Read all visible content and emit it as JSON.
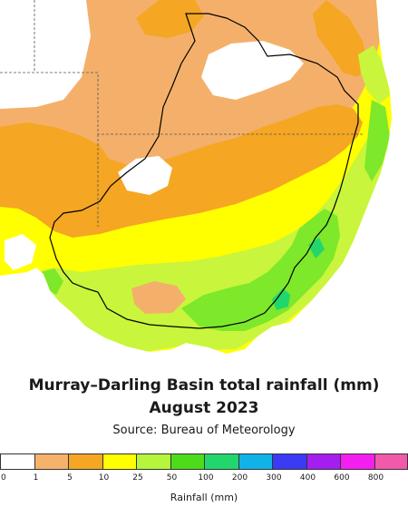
{
  "title_line1": "Murray–Darling Basin total rainfall (mm)",
  "title_line2": "August 2023",
  "source": "Source: Bureau of Meteorology",
  "legend": {
    "title": "Rainfall (mm)",
    "ticks": [
      "0",
      "1",
      "5",
      "10",
      "25",
      "50",
      "100",
      "200",
      "300",
      "400",
      "600",
      "800"
    ],
    "colors": [
      "#ffffff",
      "#f5b26b",
      "#f5a623",
      "#ffff00",
      "#b5f53c",
      "#4ddc1a",
      "#22d66e",
      "#10b3e8",
      "#3b3bf5",
      "#a41ef0",
      "#f51ef0",
      "#f05aa8"
    ]
  },
  "map": {
    "colors": {
      "ocean": "#ffffff",
      "under_1": "#ffffff",
      "r1_5": "#f4b06a",
      "r5_10": "#f5a623",
      "r10_25": "#ffff00",
      "r25_50": "#c9f53c",
      "r50_100": "#7ee82a",
      "r100_200": "#22d66e",
      "basin_outline": "#000000",
      "border_lines": "#555555"
    }
  }
}
